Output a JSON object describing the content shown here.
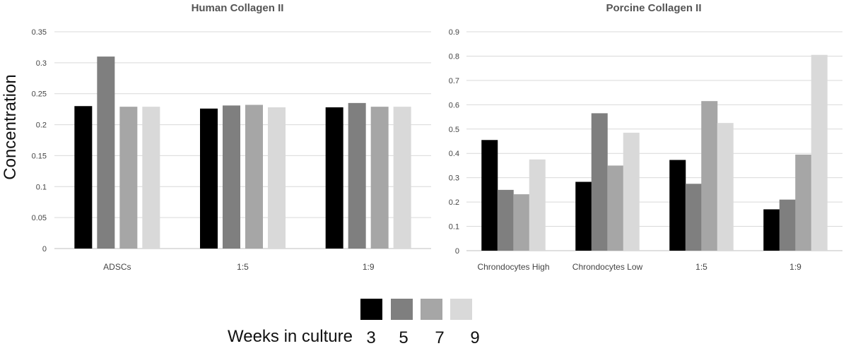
{
  "y_axis_label": "Concentration",
  "colors": {
    "w3": "#000000",
    "w5": "#7f7f7f",
    "w7": "#a6a6a6",
    "w9": "#d9d9d9"
  },
  "legend": {
    "title": "Weeks in culture",
    "items": [
      {
        "label": "3",
        "color": "#000000"
      },
      {
        "label": "5",
        "color": "#7f7f7f"
      },
      {
        "label": "7",
        "color": "#a6a6a6"
      },
      {
        "label": "9",
        "color": "#d9d9d9"
      }
    ]
  },
  "chart_data": [
    {
      "type": "bar",
      "title": "Human Collagen II",
      "ylabel": "Concentration",
      "ylim": [
        0,
        0.35
      ],
      "yticks": [
        "0",
        "0.05",
        "0.1",
        "0.15",
        "0.2",
        "0.25",
        "0.3",
        "0.35"
      ],
      "grid": true,
      "categories": [
        "ADSCs",
        "1:5",
        "1:9"
      ],
      "series": [
        {
          "name": "3",
          "values": [
            0.23,
            0.226,
            0.228
          ]
        },
        {
          "name": "5",
          "values": [
            0.31,
            0.231,
            0.235
          ]
        },
        {
          "name": "7",
          "values": [
            0.229,
            0.232,
            0.229
          ]
        },
        {
          "name": "9",
          "values": [
            0.229,
            0.228,
            0.229
          ]
        }
      ]
    },
    {
      "type": "bar",
      "title": "Porcine Collagen II",
      "ylim": [
        0,
        0.9
      ],
      "yticks": [
        "0",
        "0.1",
        "0.2",
        "0.3",
        "0.4",
        "0.5",
        "0.6",
        "0.7",
        "0.8",
        "0.9"
      ],
      "grid": true,
      "categories": [
        "Chrondocytes High",
        "Chrondocytes Low",
        "1:5",
        "1:9"
      ],
      "series": [
        {
          "name": "3",
          "values": [
            0.455,
            0.283,
            0.373,
            0.17
          ]
        },
        {
          "name": "5",
          "values": [
            0.25,
            0.565,
            0.275,
            0.21
          ]
        },
        {
          "name": "7",
          "values": [
            0.232,
            0.35,
            0.615,
            0.395
          ]
        },
        {
          "name": "9",
          "values": [
            0.375,
            0.485,
            0.525,
            0.805
          ]
        }
      ]
    }
  ]
}
